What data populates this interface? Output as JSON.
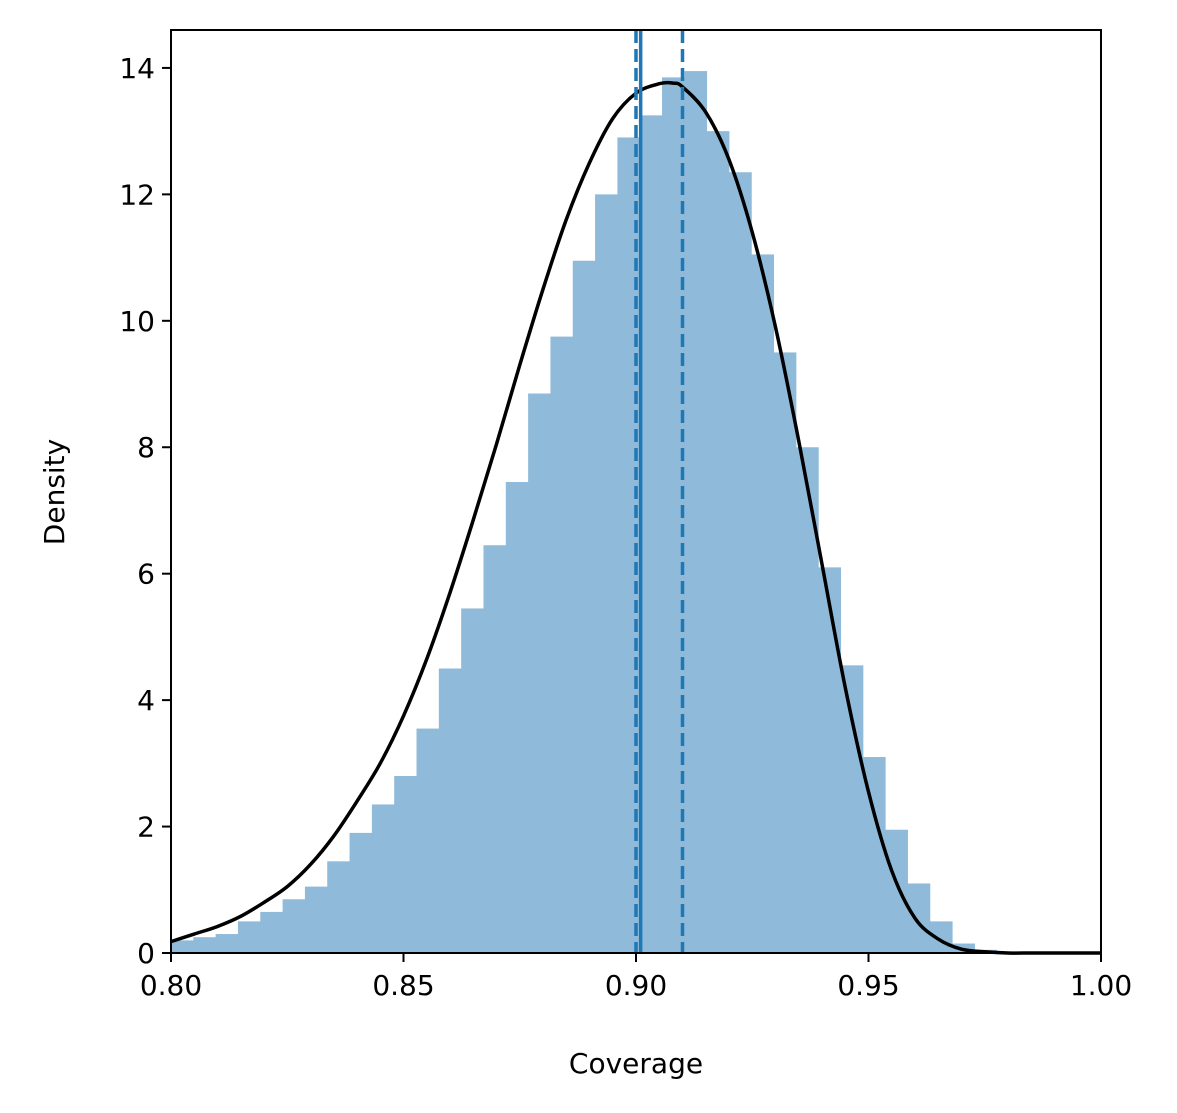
{
  "chart_data": {
    "type": "bar",
    "title": "",
    "xlabel": "Coverage",
    "ylabel": "Density",
    "xlim": [
      0.8,
      1.0
    ],
    "ylim": [
      0,
      14.6
    ],
    "x_ticks": [
      "0.80",
      "0.85",
      "0.90",
      "0.95",
      "1.00"
    ],
    "y_ticks": [
      "0",
      "2",
      "4",
      "6",
      "8",
      "10",
      "12",
      "14"
    ],
    "grid": false,
    "legend": "none",
    "histogram": {
      "bin_width": 0.0048,
      "bin_left_edges": [
        0.8,
        0.8048,
        0.8096,
        0.8144,
        0.8192,
        0.824,
        0.8288,
        0.8336,
        0.8384,
        0.8432,
        0.848,
        0.8528,
        0.8576,
        0.8624,
        0.8672,
        0.872,
        0.8768,
        0.8816,
        0.8864,
        0.8912,
        0.896,
        0.9008,
        0.9056,
        0.9104,
        0.9152,
        0.92,
        0.9248,
        0.9296,
        0.9344,
        0.9392,
        0.944,
        0.9488,
        0.9536,
        0.9584,
        0.9632,
        0.968,
        0.9728,
        0.9776
      ],
      "densities": [
        0.2,
        0.25,
        0.3,
        0.5,
        0.65,
        0.85,
        1.05,
        1.45,
        1.9,
        2.35,
        2.8,
        3.55,
        4.5,
        5.45,
        6.45,
        7.45,
        8.85,
        9.75,
        10.95,
        12.0,
        12.9,
        13.25,
        13.85,
        13.95,
        13.0,
        12.35,
        11.05,
        9.5,
        8.0,
        6.1,
        4.55,
        3.1,
        1.95,
        1.1,
        0.5,
        0.15,
        0.05,
        0.02
      ],
      "color": "#8fbad9"
    },
    "density_curve": {
      "color": "#000000",
      "x": [
        0.8,
        0.805,
        0.81,
        0.815,
        0.82,
        0.825,
        0.83,
        0.835,
        0.84,
        0.845,
        0.85,
        0.855,
        0.86,
        0.865,
        0.87,
        0.875,
        0.88,
        0.885,
        0.89,
        0.895,
        0.9,
        0.905,
        0.908,
        0.91,
        0.915,
        0.92,
        0.925,
        0.93,
        0.935,
        0.94,
        0.945,
        0.95,
        0.955,
        0.96,
        0.965,
        0.97,
        0.975,
        0.98,
        0.985,
        0.99,
        1.0
      ],
      "y": [
        0.18,
        0.3,
        0.42,
        0.58,
        0.8,
        1.05,
        1.4,
        1.85,
        2.4,
        3.0,
        3.75,
        4.65,
        5.7,
        6.85,
        8.05,
        9.3,
        10.5,
        11.6,
        12.5,
        13.2,
        13.6,
        13.75,
        13.76,
        13.7,
        13.3,
        12.55,
        11.4,
        9.9,
        8.1,
        6.15,
        4.2,
        2.55,
        1.3,
        0.55,
        0.22,
        0.06,
        0.02,
        0.0,
        0.0,
        0.0,
        0.0
      ]
    },
    "vlines": [
      {
        "x": 0.9,
        "style": "dashed",
        "color": "#1f77b4"
      },
      {
        "x": 0.901,
        "style": "solid",
        "color": "#1f77b4"
      },
      {
        "x": 0.91,
        "style": "dashed",
        "color": "#1f77b4"
      }
    ]
  }
}
